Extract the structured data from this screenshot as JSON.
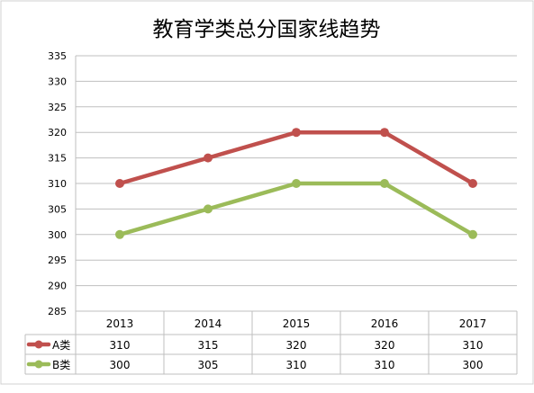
{
  "chart_data": {
    "type": "line",
    "title": "教育学类总分国家线趋势",
    "categories": [
      "2013",
      "2014",
      "2015",
      "2016",
      "2017"
    ],
    "series": [
      {
        "name": "A类",
        "values": [
          310,
          315,
          320,
          320,
          310
        ],
        "color": "#c0504d"
      },
      {
        "name": "B类",
        "values": [
          300,
          305,
          310,
          310,
          300
        ],
        "color": "#9bbb59"
      }
    ],
    "ylim": [
      285,
      335
    ],
    "yticks": [
      "285",
      "290",
      "295",
      "300",
      "305",
      "310",
      "315",
      "320",
      "325",
      "330",
      "335"
    ],
    "grid": true,
    "legend": "data-table",
    "data_table": true
  }
}
